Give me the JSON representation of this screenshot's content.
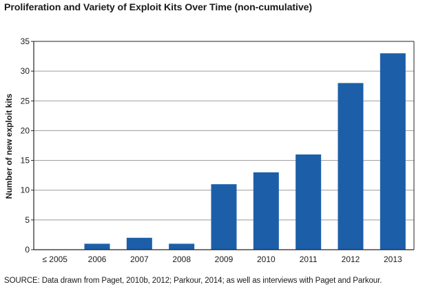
{
  "chart_data": {
    "type": "bar",
    "title": "Proliferation and Variety of Exploit Kits Over Time (non-cumulative)",
    "ylabel": "Number of new exploit kits",
    "xlabel": "",
    "categories": [
      "≤ 2005",
      "2006",
      "2007",
      "2008",
      "2009",
      "2010",
      "2011",
      "2012",
      "2013"
    ],
    "values": [
      0,
      1,
      2,
      1,
      11,
      13,
      16,
      28,
      33
    ],
    "ylim": [
      0,
      35
    ],
    "yticks": [
      0,
      5,
      10,
      15,
      20,
      25,
      30,
      35
    ],
    "grid": true,
    "legend": "none",
    "colors": {
      "bar": "#1c5fa8",
      "grid": "#9a9a9a",
      "axis": "#222222"
    },
    "source": "SOURCE: Data drawn from Paget, 2010b, 2012; Parkour, 2014; as well as interviews with Paget and Parkour."
  }
}
